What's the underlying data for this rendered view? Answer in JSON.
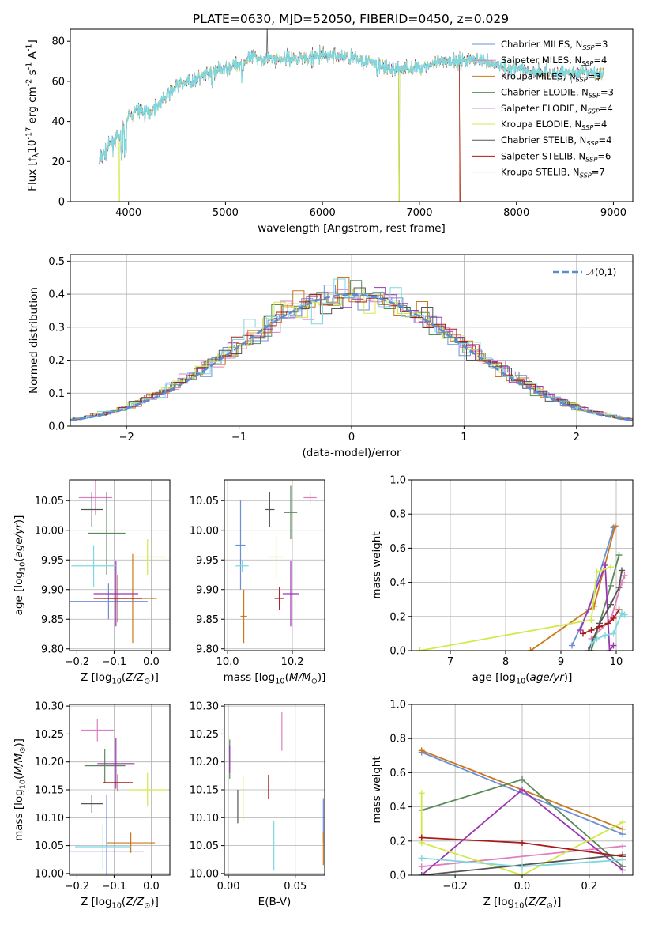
{
  "figure_title": "PLATE=0630, MJD=52050, FIBERID=0450, z=0.029",
  "colors": [
    "#6b8fd8",
    "#df7fbf",
    "#c9781c",
    "#5a8a5a",
    "#9b36b0",
    "#d4e84a",
    "#555555",
    "#aa1a1a",
    "#7fd8e0"
  ],
  "chart_data": [
    {
      "id": "spectrum",
      "type": "line",
      "title": "PLATE=0630, MJD=52050, FIBERID=0450, z=0.029",
      "xlabel": "wavelength [Angstrom, rest frame]",
      "ylabel": "Flux [f$_\\lambda$10$^{-17}$ erg cm$^{-2}$ s$^{-1}$ A$^{-1}$]",
      "xlim": [
        3400,
        9200
      ],
      "ylim": [
        0,
        86
      ],
      "xticks": [
        "4000",
        "5000",
        "6000",
        "7000",
        "8000",
        "9000"
      ],
      "yticks": [
        "0",
        "20",
        "40",
        "60",
        "80"
      ],
      "grid": false,
      "legend_position": "top-right",
      "continuum": {
        "x": [
          3700,
          3800,
          3900,
          4000,
          4100,
          4200,
          4300,
          4500,
          4700,
          4900,
          5100,
          5300,
          5500,
          5800,
          6100,
          6400,
          6700,
          7000,
          7300,
          7600,
          7900,
          8200,
          8500,
          8800,
          9000
        ],
        "y": [
          20,
          28,
          32,
          42,
          46,
          44,
          48,
          58,
          61,
          65,
          68,
          72,
          71,
          72,
          73,
          71,
          66,
          67,
          70,
          71,
          67,
          65,
          64,
          64,
          64
        ]
      },
      "series": [
        {
          "name": "Chabrier MILES, N$_{SSP}$=3"
        },
        {
          "name": "Salpeter MILES, N$_{SSP}$=4"
        },
        {
          "name": "Kroupa MILES, N$_{SSP}$=3"
        },
        {
          "name": "Chabrier ELODIE, N$_{SSP}$=3"
        },
        {
          "name": "Salpeter ELODIE, N$_{SSP}$=4"
        },
        {
          "name": "Kroupa ELODIE, N$_{SSP}$=4"
        },
        {
          "name": "Chabrier STELIB, N$_{SSP}$=4"
        },
        {
          "name": "Salpeter STELIB, N$_{SSP}$=6"
        },
        {
          "name": "Kroupa STELIB, N$_{SSP}$=7"
        }
      ]
    },
    {
      "id": "residuals",
      "type": "histogram",
      "xlabel": "(data-model)/error",
      "ylabel": "Normed distribution",
      "xlim": [
        -2.5,
        2.5
      ],
      "ylim": [
        0,
        0.52
      ],
      "xticks": [
        "−2",
        "−1",
        "0",
        "1",
        "2"
      ],
      "yticks": [
        "0.0",
        "0.1",
        "0.2",
        "0.3",
        "0.4",
        "0.5"
      ],
      "grid": true,
      "bin_width": 0.1,
      "reference_curve": {
        "name": "$\\mathcal{N}(0,1)$",
        "mean": 0,
        "sigma": 1
      },
      "legend_position": "top-right"
    },
    {
      "id": "age_vs_Z",
      "type": "errorbar",
      "xlabel": "Z [log$_{10}$($Z/Z_\\odot$)]",
      "ylabel": "age  [log$_{10}$($age/yr$)]",
      "xlim": [
        -0.22,
        0.05
      ],
      "ylim": [
        9.797,
        10.085
      ],
      "xticks": [
        "−0.2",
        "−0.1",
        "0.0"
      ],
      "yticks": [
        "9.80",
        "9.85",
        "9.90",
        "9.95",
        "10.00",
        "10.05"
      ],
      "grid": true,
      "points": [
        {
          "x": -0.115,
          "xerr": 0.105,
          "y": 9.88,
          "yerr": 0.03
        },
        {
          "x": -0.15,
          "xerr": 0.045,
          "y": 10.055,
          "yerr": 0.03
        },
        {
          "x": -0.05,
          "xerr": 0.065,
          "y": 9.885,
          "yerr": 0.075
        },
        {
          "x": -0.12,
          "xerr": 0.05,
          "y": 9.995,
          "yerr": 0.07
        },
        {
          "x": -0.095,
          "xerr": 0.06,
          "y": 9.893,
          "yerr": 0.055
        },
        {
          "x": -0.01,
          "xerr": 0.05,
          "y": 9.955,
          "yerr": 0.03
        },
        {
          "x": -0.16,
          "xerr": 0.03,
          "y": 10.035,
          "yerr": 0.03
        },
        {
          "x": -0.09,
          "xerr": 0.065,
          "y": 9.885,
          "yerr": 0.04
        },
        {
          "x": -0.155,
          "xerr": 0.06,
          "y": 9.94,
          "yerr": 0.035
        }
      ]
    },
    {
      "id": "age_vs_mass",
      "type": "errorbar",
      "xlabel": "mass [log$_{10}$($M/M_\\odot$)]",
      "xlim": [
        9.99,
        10.3
      ],
      "ylim": [
        9.797,
        10.085
      ],
      "xticks": [
        "10.0",
        "10.2"
      ],
      "yticks": [
        "9.80",
        "9.85",
        "9.90",
        "9.95",
        "10.00",
        "10.05"
      ],
      "grid": true,
      "points": [
        {
          "x": 10.04,
          "xerr": 0.015,
          "y": 9.975,
          "yerr": 0.075
        },
        {
          "x": 10.255,
          "xerr": 0.02,
          "y": 10.055,
          "yerr": 0.01
        },
        {
          "x": 10.05,
          "xerr": 0.01,
          "y": 9.855,
          "yerr": 0.045
        },
        {
          "x": 10.195,
          "xerr": 0.02,
          "y": 10.03,
          "yerr": 0.045
        },
        {
          "x": 10.195,
          "xerr": 0.025,
          "y": 9.893,
          "yerr": 0.055
        },
        {
          "x": 10.15,
          "xerr": 0.025,
          "y": 9.955,
          "yerr": 0.035
        },
        {
          "x": 10.13,
          "xerr": 0.015,
          "y": 10.035,
          "yerr": 0.03
        },
        {
          "x": 10.16,
          "xerr": 0.015,
          "y": 9.885,
          "yerr": 0.02
        },
        {
          "x": 10.045,
          "xerr": 0.02,
          "y": 9.94,
          "yerr": 0.01
        }
      ]
    },
    {
      "id": "mass_weight_vs_age",
      "type": "line",
      "xlabel": "age  [log$_{10}$($age/yr$)]",
      "ylabel": "mass weight",
      "xlim": [
        6.3,
        10.3
      ],
      "ylim": [
        0,
        1
      ],
      "xticks": [
        "7",
        "8",
        "9",
        "10"
      ],
      "yticks": [
        "0.0",
        "0.2",
        "0.4",
        "0.6",
        "0.8",
        "1.0"
      ],
      "grid": true,
      "series": [
        {
          "x": [
            9.2,
            9.5,
            9.95
          ],
          "y": [
            0.03,
            0.24,
            0.72
          ]
        },
        {
          "x": [
            9.55,
            9.9,
            10.1,
            10.15
          ],
          "y": [
            0.07,
            0.18,
            0.4,
            0.44
          ]
        },
        {
          "x": [
            8.45,
            9.6,
            9.98
          ],
          "y": [
            0.0,
            0.26,
            0.73
          ]
        },
        {
          "x": [
            9.55,
            9.9,
            10.05
          ],
          "y": [
            0.0,
            0.38,
            0.56
          ]
        },
        {
          "x": [
            9.35,
            9.8,
            9.88,
            9.95
          ],
          "y": [
            0.12,
            0.5,
            0.0,
            0.03
          ]
        },
        {
          "x": [
            6.45,
            9.55,
            9.65,
            9.9
          ],
          "y": [
            0.0,
            0.18,
            0.46,
            0.49
          ]
        },
        {
          "x": [
            9.5,
            9.7,
            9.9,
            10.05,
            10.1
          ],
          "y": [
            0.0,
            0.16,
            0.27,
            0.37,
            0.47
          ]
        },
        {
          "x": [
            9.4,
            9.55,
            9.7,
            9.85,
            9.95,
            10.05
          ],
          "y": [
            0.1,
            0.12,
            0.14,
            0.16,
            0.19,
            0.24
          ]
        },
        {
          "x": [
            9.55,
            9.65,
            9.8,
            9.95,
            10.1,
            10.15
          ],
          "y": [
            0.04,
            0.07,
            0.09,
            0.1,
            0.22,
            0.21
          ]
        }
      ]
    },
    {
      "id": "mass_vs_Z",
      "type": "errorbar",
      "xlabel": "Z [log$_{10}$($Z/Z_\\odot$)]",
      "ylabel": "mass [log$_{10}$($M/M_\\odot$)]",
      "xlim": [
        -0.22,
        0.05
      ],
      "ylim": [
        9.997,
        10.303
      ],
      "xticks": [
        "−0.2",
        "−0.1",
        "0.0"
      ],
      "yticks": [
        "10.00",
        "10.05",
        "10.10",
        "10.15",
        "10.20",
        "10.25",
        "10.30"
      ],
      "grid": true,
      "points": [
        {
          "x": -0.12,
          "xerr": 0.1,
          "y": 10.04,
          "yerr": 0.1
        },
        {
          "x": -0.145,
          "xerr": 0.045,
          "y": 10.257,
          "yerr": 0.02
        },
        {
          "x": -0.055,
          "xerr": 0.065,
          "y": 10.055,
          "yerr": 0.018
        },
        {
          "x": -0.125,
          "xerr": 0.055,
          "y": 10.193,
          "yerr": 0.03
        },
        {
          "x": -0.095,
          "xerr": 0.05,
          "y": 10.197,
          "yerr": 0.045
        },
        {
          "x": -0.01,
          "xerr": 0.05,
          "y": 10.15,
          "yerr": 0.03
        },
        {
          "x": -0.16,
          "xerr": 0.03,
          "y": 10.125,
          "yerr": 0.016
        },
        {
          "x": -0.09,
          "xerr": 0.04,
          "y": 10.163,
          "yerr": 0.015
        },
        {
          "x": -0.13,
          "xerr": 0.075,
          "y": 10.048,
          "yerr": 0.04
        }
      ]
    },
    {
      "id": "mass_vs_EBV",
      "type": "errorbar",
      "xlabel": "E(B-V)",
      "xlim": [
        -0.003,
        0.072
      ],
      "ylim": [
        9.997,
        10.303
      ],
      "xticks": [
        "0.00",
        "0.05"
      ],
      "yticks": [
        "10.00",
        "10.05",
        "10.10",
        "10.15",
        "10.20",
        "10.25",
        "10.30"
      ],
      "grid": true,
      "points": [
        {
          "x": 0.071,
          "y": 10.095,
          "yerr": 0.04
        },
        {
          "x": 0.04,
          "y": 10.255,
          "yerr": 0.035
        },
        {
          "x": 0.071,
          "y": 10.045,
          "yerr": 0.03
        },
        {
          "x": 0.001,
          "y": 10.205,
          "yerr": 0.035
        },
        {
          "x": 0.001,
          "y": 10.205,
          "yerr": 0.025
        },
        {
          "x": 0.011,
          "y": 10.135,
          "yerr": 0.04
        },
        {
          "x": 0.007,
          "y": 10.12,
          "yerr": 0.03
        },
        {
          "x": 0.03,
          "y": 10.155,
          "yerr": 0.022
        },
        {
          "x": 0.034,
          "y": 10.05,
          "yerr": 0.045
        }
      ]
    },
    {
      "id": "mass_weight_vs_Z",
      "type": "line",
      "xlabel": "Z [log$_{10}$($Z/Z_\\odot$)]",
      "ylabel": "mass weight",
      "xlim": [
        -0.33,
        0.33
      ],
      "ylim": [
        0,
        1
      ],
      "xticks": [
        "−0.2",
        "0.0",
        "0.2"
      ],
      "yticks": [
        "0.0",
        "0.2",
        "0.4",
        "0.6",
        "0.8",
        "1.0"
      ],
      "grid": true,
      "series": [
        {
          "x": [
            -0.3,
            0.3
          ],
          "y": [
            0.72,
            0.24
          ]
        },
        {
          "x": [
            -0.3,
            0.3
          ],
          "y": [
            0.05,
            0.17
          ]
        },
        {
          "x": [
            -0.3,
            0.3
          ],
          "y": [
            0.73,
            0.27
          ]
        },
        {
          "x": [
            -0.3,
            0.0,
            0.3
          ],
          "y": [
            0.38,
            0.56,
            0.05
          ]
        },
        {
          "x": [
            -0.3,
            0.0,
            0.3
          ],
          "y": [
            0.0,
            0.5,
            0.03
          ]
        },
        {
          "x": [
            -0.3,
            -0.3,
            0.0,
            0.3
          ],
          "y": [
            0.48,
            0.19,
            0.0,
            0.31
          ]
        },
        {
          "x": [
            -0.3,
            0.3
          ],
          "y": [
            0.0,
            0.12
          ]
        },
        {
          "x": [
            -0.3,
            0.0,
            0.3
          ],
          "y": [
            0.22,
            0.19,
            0.11
          ]
        },
        {
          "x": [
            -0.3,
            0.0,
            0.3
          ],
          "y": [
            0.1,
            0.05,
            0.09
          ]
        }
      ]
    }
  ]
}
